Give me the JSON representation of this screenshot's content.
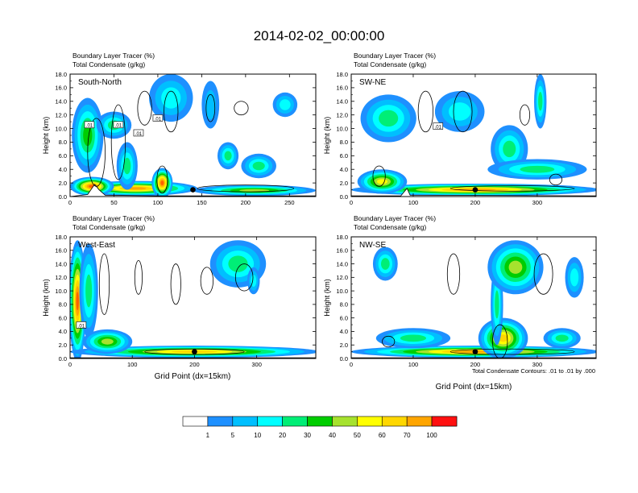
{
  "title": "2014-02-02_00:00:00",
  "ylabel": "Height (km)",
  "xlabel": "Grid Point (dx=15km)",
  "field_label": "Boundary Layer Tracer",
  "field_unit": "(%)",
  "contour_label": "Total Condensate",
  "contour_unit": "(g/kg)",
  "contour_info": "Total Condensate Contours: .01 to .01 by .000",
  "contour_tag": ".01",
  "colors": {
    "fill_levels": [
      "#ffffff",
      "#1e90ff",
      "#00bfff",
      "#00ffff",
      "#00ee76",
      "#00cd00",
      "#a6e22e",
      "#ffff00",
      "#ffd700",
      "#ffa500",
      "#ff6000",
      "#ff1010"
    ],
    "contour": "#000000",
    "terrain": "#ffffff"
  },
  "colorbar": {
    "labels": [
      "1",
      "5",
      "10",
      "20",
      "30",
      "40",
      "50",
      "60",
      "70",
      "100"
    ]
  },
  "chart_data": [
    {
      "type": "heatmap",
      "name": "South-North",
      "ylim": [
        0,
        18
      ],
      "xlim": [
        0,
        280
      ],
      "yticks": [
        "0.0",
        "2.0",
        "4.0",
        "6.0",
        "8.0",
        "10.0",
        "12.0",
        "14.0",
        "16.0",
        "18.0"
      ],
      "xticks": [
        0,
        50,
        100,
        150,
        200,
        250
      ],
      "marker_x": 140,
      "tags": [
        [
          22,
          10.5
        ],
        [
          55,
          10.5
        ],
        [
          100,
          11.5
        ],
        [
          78,
          9.3
        ]
      ],
      "blobs": [
        {
          "x": 75,
          "y": 1.2,
          "rx": 70,
          "ry": 1.1,
          "v": 0.85
        },
        {
          "x": 105,
          "y": 2.0,
          "rx": 12,
          "ry": 2.2,
          "v": 0.95
        },
        {
          "x": 25,
          "y": 1.5,
          "rx": 25,
          "ry": 1.4,
          "v": 0.9
        },
        {
          "x": 210,
          "y": 0.9,
          "rx": 70,
          "ry": 0.8,
          "v": 0.55
        },
        {
          "x": 20,
          "y": 9.0,
          "rx": 18,
          "ry": 5.5,
          "v": 0.45
        },
        {
          "x": 50,
          "y": 10.5,
          "rx": 20,
          "ry": 2.0,
          "v": 0.4
        },
        {
          "x": 65,
          "y": 4.5,
          "rx": 12,
          "ry": 3.5,
          "v": 0.4
        },
        {
          "x": 115,
          "y": 14.5,
          "rx": 25,
          "ry": 3.5,
          "v": 0.3
        },
        {
          "x": 160,
          "y": 13.5,
          "rx": 10,
          "ry": 3.5,
          "v": 0.15
        },
        {
          "x": 180,
          "y": 6.0,
          "rx": 12,
          "ry": 2.0,
          "v": 0.35
        },
        {
          "x": 215,
          "y": 4.5,
          "rx": 20,
          "ry": 1.8,
          "v": 0.35
        },
        {
          "x": 245,
          "y": 13.5,
          "rx": 14,
          "ry": 1.8,
          "v": 0.3
        }
      ],
      "terrain": [
        [
          0,
          0
        ],
        [
          20,
          0.3
        ],
        [
          28,
          1.8
        ],
        [
          33,
          1.0
        ],
        [
          40,
          0.2
        ],
        [
          100,
          0.1
        ],
        [
          280,
          0.1
        ]
      ],
      "contours": [
        {
          "x": 30,
          "y": 6.5,
          "rx": 10,
          "ry": 5.0
        },
        {
          "x": 55,
          "y": 8.0,
          "rx": 8,
          "ry": 5.5
        },
        {
          "x": 85,
          "y": 13.0,
          "rx": 8,
          "ry": 2.5
        },
        {
          "x": 115,
          "y": 12.5,
          "rx": 8,
          "ry": 3.0
        },
        {
          "x": 160,
          "y": 13.0,
          "rx": 5,
          "ry": 2.0
        },
        {
          "x": 195,
          "y": 13.0,
          "rx": 8,
          "ry": 1.0
        },
        {
          "x": 105,
          "y": 2.5,
          "rx": 6,
          "ry": 2.0
        },
        {
          "x": 200,
          "y": 1.2,
          "rx": 55,
          "ry": 0.5
        }
      ]
    },
    {
      "type": "heatmap",
      "name": "SW-NE",
      "ylim": [
        0,
        18
      ],
      "xlim": [
        0,
        395
      ],
      "yticks": [
        "0.0",
        "2.0",
        "4.0",
        "6.0",
        "8.0",
        "10.0",
        "12.0",
        "14.0",
        "16.0",
        "18.0"
      ],
      "xticks": [
        0,
        100,
        200,
        300
      ],
      "marker_x": 200,
      "tags": [
        [
          140,
          10.3
        ]
      ],
      "blobs": [
        {
          "x": 200,
          "y": 1.0,
          "rx": 200,
          "ry": 0.9,
          "v": 0.85
        },
        {
          "x": 50,
          "y": 2.2,
          "rx": 40,
          "ry": 1.8,
          "v": 0.6
        },
        {
          "x": 60,
          "y": 11.5,
          "rx": 45,
          "ry": 3.5,
          "v": 0.35
        },
        {
          "x": 175,
          "y": 12.5,
          "rx": 40,
          "ry": 3.0,
          "v": 0.3
        },
        {
          "x": 255,
          "y": 7.0,
          "rx": 30,
          "ry": 3.5,
          "v": 0.4
        },
        {
          "x": 305,
          "y": 14.0,
          "rx": 10,
          "ry": 4.0,
          "v": 0.4
        },
        {
          "x": 300,
          "y": 4.0,
          "rx": 80,
          "ry": 1.5,
          "v": 0.35
        }
      ],
      "terrain": [
        [
          0,
          0.1
        ],
        [
          80,
          0.1
        ],
        [
          90,
          1.2
        ],
        [
          95,
          0.2
        ],
        [
          395,
          0.1
        ]
      ],
      "contours": [
        {
          "x": 120,
          "y": 12.5,
          "rx": 12,
          "ry": 3.0
        },
        {
          "x": 180,
          "y": 12.5,
          "rx": 15,
          "ry": 3.0
        },
        {
          "x": 280,
          "y": 12.0,
          "rx": 8,
          "ry": 1.5
        },
        {
          "x": 45,
          "y": 3.0,
          "rx": 10,
          "ry": 1.5
        },
        {
          "x": 330,
          "y": 2.5,
          "rx": 10,
          "ry": 0.8
        },
        {
          "x": 260,
          "y": 1.2,
          "rx": 100,
          "ry": 0.4
        }
      ]
    },
    {
      "type": "heatmap",
      "name": "West-East",
      "ylim": [
        0,
        18
      ],
      "xlim": [
        0,
        395
      ],
      "yticks": [
        "0.0",
        "2.0",
        "4.0",
        "6.0",
        "8.0",
        "10.0",
        "12.0",
        "14.0",
        "16.0",
        "18.0"
      ],
      "xticks": [
        0,
        100,
        200,
        300
      ],
      "marker_x": 200,
      "tags": [
        [
          18,
          4.9
        ]
      ],
      "blobs": [
        {
          "x": 12,
          "y": 8.5,
          "rx": 14,
          "ry": 9.0,
          "v": 0.9
        },
        {
          "x": 30,
          "y": 10.0,
          "rx": 15,
          "ry": 7.0,
          "v": 0.35
        },
        {
          "x": 200,
          "y": 1.0,
          "rx": 200,
          "ry": 0.9,
          "v": 0.75
        },
        {
          "x": 60,
          "y": 2.5,
          "rx": 40,
          "ry": 1.8,
          "v": 0.55
        },
        {
          "x": 270,
          "y": 14.0,
          "rx": 45,
          "ry": 3.5,
          "v": 0.4
        },
        {
          "x": 295,
          "y": 11.5,
          "rx": 10,
          "ry": 2.0,
          "v": 0.3
        }
      ],
      "terrain": [
        [
          0,
          0.1
        ],
        [
          395,
          0.1
        ]
      ],
      "contours": [
        {
          "x": 55,
          "y": 11.0,
          "rx": 8,
          "ry": 4.5
        },
        {
          "x": 110,
          "y": 12.0,
          "rx": 6,
          "ry": 2.5
        },
        {
          "x": 170,
          "y": 11.0,
          "rx": 8,
          "ry": 3.0
        },
        {
          "x": 220,
          "y": 11.5,
          "rx": 10,
          "ry": 2.0
        },
        {
          "x": 280,
          "y": 12.0,
          "rx": 14,
          "ry": 2.0
        },
        {
          "x": 200,
          "y": 1.0,
          "rx": 80,
          "ry": 0.4
        }
      ]
    },
    {
      "type": "heatmap",
      "name": "NW-SE",
      "ylim": [
        0,
        18
      ],
      "xlim": [
        0,
        395
      ],
      "yticks": [
        "0.0",
        "2.0",
        "4.0",
        "6.0",
        "8.0",
        "10.0",
        "12.0",
        "14.0",
        "16.0",
        "18.0"
      ],
      "xticks": [
        0,
        100,
        200,
        300
      ],
      "marker_x": 200,
      "tags": [],
      "blobs": [
        {
          "x": 200,
          "y": 1.0,
          "rx": 200,
          "ry": 0.9,
          "v": 0.85
        },
        {
          "x": 245,
          "y": 3.0,
          "rx": 40,
          "ry": 3.0,
          "v": 0.7
        },
        {
          "x": 100,
          "y": 3.0,
          "rx": 60,
          "ry": 1.5,
          "v": 0.4
        },
        {
          "x": 235,
          "y": 8.0,
          "rx": 10,
          "ry": 6.0,
          "v": 0.4
        },
        {
          "x": 265,
          "y": 13.5,
          "rx": 45,
          "ry": 4.0,
          "v": 0.55
        },
        {
          "x": 55,
          "y": 14.0,
          "rx": 20,
          "ry": 2.5,
          "v": 0.35
        },
        {
          "x": 340,
          "y": 3.0,
          "rx": 30,
          "ry": 1.5,
          "v": 0.4
        },
        {
          "x": 360,
          "y": 12.0,
          "rx": 15,
          "ry": 3.0,
          "v": 0.3
        }
      ],
      "terrain": [
        [
          0,
          0.1
        ],
        [
          395,
          0.1
        ]
      ],
      "contours": [
        {
          "x": 165,
          "y": 12.5,
          "rx": 10,
          "ry": 3.0
        },
        {
          "x": 310,
          "y": 12.5,
          "rx": 15,
          "ry": 3.0
        },
        {
          "x": 60,
          "y": 2.5,
          "rx": 10,
          "ry": 0.8
        },
        {
          "x": 240,
          "y": 2.5,
          "rx": 12,
          "ry": 2.5
        },
        {
          "x": 260,
          "y": 1.0,
          "rx": 100,
          "ry": 0.4
        }
      ]
    }
  ]
}
